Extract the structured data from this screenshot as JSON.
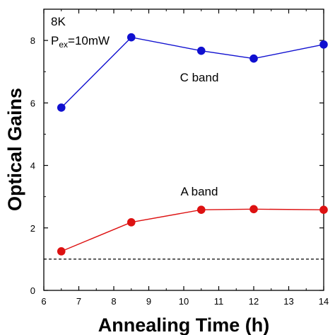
{
  "chart_data": {
    "type": "line",
    "xlabel": "Annealing Time (h)",
    "ylabel": "Optical Gains",
    "xlim": [
      6,
      14
    ],
    "ylim": [
      0,
      9
    ],
    "x_ticks": [
      6,
      7,
      8,
      9,
      10,
      11,
      12,
      13,
      14
    ],
    "y_ticks": [
      0,
      2,
      4,
      6,
      8
    ],
    "annotations": {
      "temperature": "8K",
      "power_main": "P",
      "power_sub": "ex",
      "power_value": "=10mW"
    },
    "reference_line": {
      "y": 1.0,
      "style": "dashed",
      "color": "#000000"
    },
    "series": [
      {
        "name": "C band",
        "color": "#1010d0",
        "x": [
          6.5,
          8.5,
          10.5,
          12,
          14
        ],
        "y": [
          5.85,
          8.1,
          7.67,
          7.42,
          7.87
        ]
      },
      {
        "name": "A band",
        "color": "#dd1111",
        "x": [
          6.5,
          8.5,
          10.5,
          12,
          14
        ],
        "y": [
          1.25,
          2.18,
          2.58,
          2.6,
          2.58
        ]
      }
    ]
  }
}
